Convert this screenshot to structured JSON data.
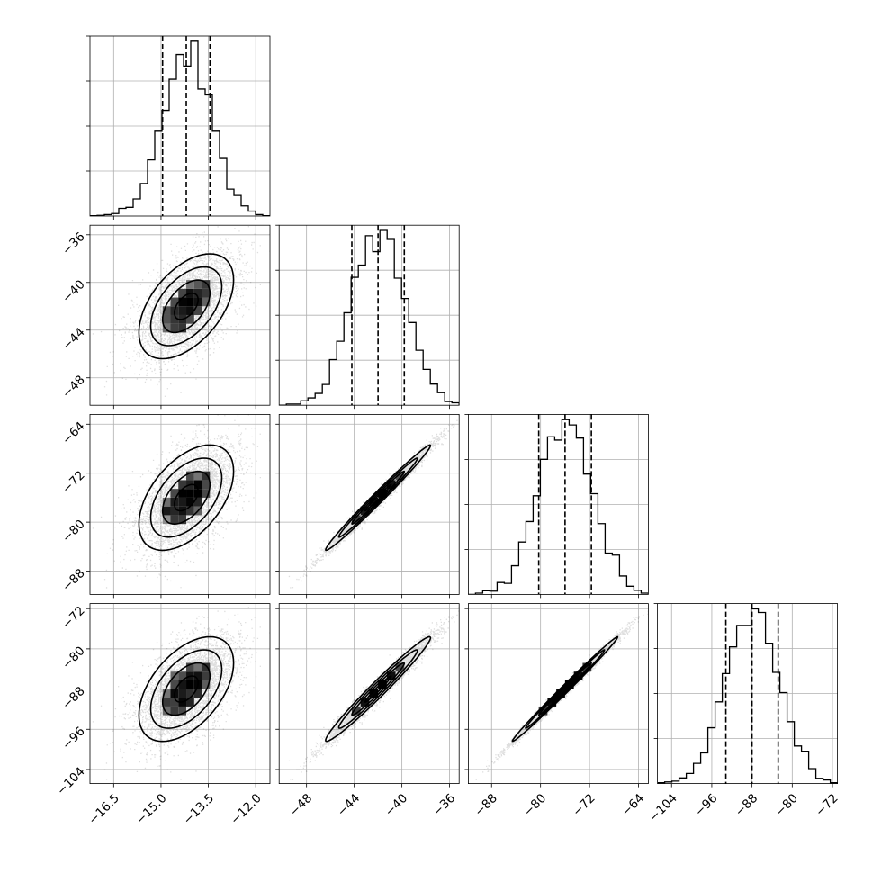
{
  "chart_data": {
    "type": "corner",
    "parameters": [
      {
        "median": -14.2,
        "q16": -14.95,
        "q84": -13.45,
        "sigma": 0.75,
        "range": [
          -17.25,
          -11.55
        ],
        "ticks": [
          -16.5,
          -15.0,
          -13.5,
          -12.0
        ],
        "tick_labels": [
          "−16.5",
          "−15.0",
          "−13.5",
          "−12.0"
        ]
      },
      {
        "median": -42.0,
        "q16": -44.2,
        "q84": -39.8,
        "sigma": 2.2,
        "range": [
          -50.3,
          -35.2
        ],
        "ticks": [
          -48,
          -44,
          -40,
          -36
        ],
        "tick_labels": [
          "−48",
          "−44",
          "−40",
          "−36"
        ]
      },
      {
        "median": -76.0,
        "q16": -80.3,
        "q84": -71.7,
        "sigma": 4.3,
        "range": [
          -91.8,
          -62.4
        ],
        "ticks": [
          -88,
          -80,
          -72,
          -64
        ],
        "tick_labels": [
          "−88",
          "−80",
          "−72",
          "−64"
        ]
      },
      {
        "median": -88.0,
        "q16": -93.2,
        "q84": -82.8,
        "sigma": 5.2,
        "range": [
          -106.8,
          -71.0
        ],
        "ticks": [
          -104,
          -96,
          -88,
          -80,
          -72
        ],
        "tick_labels": [
          "−104",
          "−96",
          "−88",
          "−80",
          "−72"
        ]
      }
    ],
    "histogram_bins": 25,
    "quantiles": [
      0.16,
      0.5,
      0.84
    ],
    "density_levels_sigma": [
      0.5,
      1.0,
      1.5,
      2.0
    ],
    "correlations": [
      [
        1.0,
        0.5,
        0.5,
        0.5
      ],
      [
        0.5,
        1.0,
        0.99,
        0.98
      ],
      [
        0.5,
        0.99,
        1.0,
        0.995
      ],
      [
        0.5,
        0.98,
        0.995,
        1.0
      ]
    ],
    "grid": true,
    "colors": {
      "points": "#000000",
      "lines": "#000000",
      "grid": "#b0b0b0"
    }
  }
}
